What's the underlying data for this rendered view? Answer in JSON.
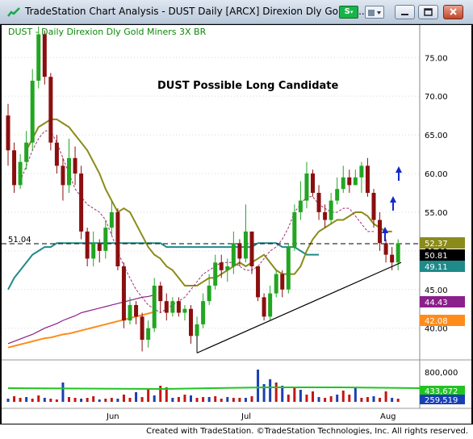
{
  "window": {
    "title": "TradeStation Chart Analysis - DUST Daily [ARCX] Direxion Dly Gold M...",
    "s_button_label": "S",
    "icons": [
      "tradestation-logo-icon",
      "dropdown-icon",
      "toolbar-icon",
      "minimize-icon",
      "restore-icon",
      "close-icon"
    ]
  },
  "chart": {
    "symbol_label": "DUST - Daily  Direxion Dly Gold Miners 3X BR",
    "annotation": "DUST Possible Long Candidate",
    "reference_line_label": "51.04",
    "price_ticks": [
      "75.00",
      "70.00",
      "65.00",
      "60.00",
      "55.00",
      "50.00",
      "45.00",
      "40.00"
    ],
    "volume_tick": "800,000",
    "x_labels": [
      "Jun",
      "Jul",
      "Aug"
    ],
    "price_badges": [
      {
        "value": "52.37",
        "color": "#8b8b1a"
      },
      {
        "value": "50.81",
        "color": "#000000"
      },
      {
        "value": "49.11",
        "color": "#1e8a8a"
      },
      {
        "value": "44.43",
        "color": "#8b1f8b"
      },
      {
        "value": "42.08",
        "color": "#ff8c1a"
      }
    ],
    "volume_badges": [
      {
        "value": "433,672",
        "color": "#22c422"
      },
      {
        "value": "259,519",
        "color": "#1a3fb5"
      }
    ]
  },
  "chart_data": {
    "type": "candlestick",
    "symbol": "DUST",
    "reference_line": 51.04,
    "ylim": [
      36,
      79
    ],
    "x_labels": [
      "Jun",
      "Jul",
      "Aug"
    ],
    "candles": [
      [
        67.5,
        63,
        69,
        61
      ],
      [
        63,
        58.5,
        64,
        57.5
      ],
      [
        58.5,
        61.5,
        62.5,
        58
      ],
      [
        61.5,
        64,
        65.5,
        60.5
      ],
      [
        64,
        72,
        73.5,
        63
      ],
      [
        72,
        78,
        79,
        71
      ],
      [
        78,
        72.5,
        78.5,
        71.5
      ],
      [
        72.5,
        64,
        73,
        63
      ],
      [
        64,
        61,
        65,
        60
      ],
      [
        61,
        58.5,
        62,
        56.5
      ],
      [
        58.5,
        62,
        64.5,
        57.5
      ],
      [
        62,
        60,
        63.5,
        58.5
      ],
      [
        60,
        52.5,
        61,
        51.5
      ],
      [
        52.5,
        49,
        53,
        48
      ],
      [
        49,
        51,
        52.5,
        48
      ],
      [
        51,
        50,
        51.5,
        48.5
      ],
      [
        50,
        53,
        54,
        49
      ],
      [
        53,
        55,
        56.5,
        52
      ],
      [
        55,
        48,
        55.5,
        47.5
      ],
      [
        48,
        41,
        48.5,
        40
      ],
      [
        41,
        43,
        44,
        40.5
      ],
      [
        43,
        41.5,
        43.5,
        40.5
      ],
      [
        41.5,
        38.5,
        42,
        37
      ],
      [
        38.5,
        40,
        41,
        37.5
      ],
      [
        40,
        45.5,
        46.5,
        39.5
      ],
      [
        45.5,
        43.5,
        46,
        42
      ],
      [
        43.5,
        42,
        44.5,
        41
      ],
      [
        42,
        43.5,
        44,
        41.5
      ],
      [
        43.5,
        42,
        44,
        41.5
      ],
      [
        42,
        42.5,
        43,
        41
      ],
      [
        42.5,
        39,
        43,
        38
      ],
      [
        39,
        40.5,
        41.5,
        38.5
      ],
      [
        40.5,
        43.5,
        44.5,
        40
      ],
      [
        43.5,
        45.5,
        47,
        43
      ],
      [
        45.5,
        48.5,
        49.5,
        45
      ],
      [
        48.5,
        47.5,
        49.5,
        46.5
      ],
      [
        47.5,
        48,
        49,
        46
      ],
      [
        48,
        51,
        52.5,
        47
      ],
      [
        51,
        49,
        51.5,
        48
      ],
      [
        49,
        52.5,
        56,
        48.5
      ],
      [
        52.5,
        48,
        52,
        47
      ],
      [
        48,
        44,
        48,
        43.5
      ],
      [
        44,
        41.5,
        44.5,
        41
      ],
      [
        41.5,
        44.5,
        45.5,
        41
      ],
      [
        44.5,
        47,
        47.5,
        44
      ],
      [
        47,
        45,
        47.5,
        44
      ],
      [
        45,
        50.5,
        51,
        44.5
      ],
      [
        50.5,
        55,
        56,
        50
      ],
      [
        55,
        56.5,
        59,
        54
      ],
      [
        56.5,
        60,
        61.5,
        55.5
      ],
      [
        60,
        57.5,
        60.5,
        57
      ],
      [
        57.5,
        55,
        58.5,
        54
      ],
      [
        55,
        54,
        56,
        53
      ],
      [
        54,
        56.5,
        57.5,
        53.5
      ],
      [
        56.5,
        58,
        59.5,
        56
      ],
      [
        58,
        59.5,
        61,
        57.5
      ],
      [
        59.5,
        58.5,
        60.5,
        57.5
      ],
      [
        58.5,
        59.5,
        60.5,
        58.5
      ],
      [
        59.5,
        61,
        61.5,
        57.5
      ],
      [
        61,
        57.5,
        62,
        57
      ],
      [
        57.5,
        54,
        58,
        53
      ],
      [
        54,
        51,
        55,
        50
      ],
      [
        51,
        49.5,
        51.5,
        48.5
      ],
      [
        49.5,
        48.5,
        50.5,
        47.5
      ],
      [
        48.5,
        51,
        51.5,
        47.5
      ]
    ],
    "ma_olive": [
      63,
      64.5,
      66,
      66.5,
      67,
      67,
      66.5,
      66,
      65,
      64,
      63,
      61.5,
      60,
      58,
      56.5,
      55,
      55.5,
      55,
      53.5,
      52,
      50.5,
      49.5,
      49,
      48,
      47.5,
      46.5,
      45.5,
      45.5,
      45.5,
      46,
      46.5,
      46.5,
      47,
      47.5,
      48,
      48.5,
      48,
      48.5,
      49,
      49.5,
      48.5,
      47.5,
      47,
      47,
      47,
      48,
      50,
      51.5,
      52.5,
      53,
      53.5,
      54,
      54,
      54.5,
      55,
      55,
      54.5,
      53.5,
      53,
      52.5,
      52.5
    ],
    "ma_magenta": [
      59,
      61,
      63,
      64.5,
      65.5,
      65.5,
      64,
      62,
      60,
      58,
      57,
      56,
      55.5,
      55,
      54,
      52,
      50,
      48,
      46.5,
      45,
      44,
      43,
      42.5,
      42,
      42.5,
      43,
      43.5,
      44,
      45,
      46,
      47,
      47.5,
      48,
      48.5,
      48.5,
      48.5,
      48,
      47.5,
      47.5,
      48,
      49,
      50,
      50.5,
      51.5,
      53,
      55,
      56,
      57,
      57,
      56,
      55.5,
      55,
      55,
      55.5,
      55.5,
      54.5,
      53.5,
      52.5,
      52.5
    ],
    "ma_teal": [
      45,
      46.5,
      47.5,
      48.5,
      49.5,
      50,
      50.5,
      50.5,
      51,
      51,
      51,
      51,
      51,
      51,
      51,
      51,
      51,
      51,
      51,
      51,
      51,
      51,
      51,
      51,
      51,
      51,
      50.5,
      50.5,
      50.5,
      50.5,
      50.5,
      50.5,
      50.5,
      50.5,
      50.5,
      50.5,
      50.5,
      50.5,
      50.5,
      50.5,
      50.5,
      51,
      51,
      51,
      51,
      50.5,
      50.5,
      50.5,
      50,
      49.5,
      49.5,
      49.5
    ],
    "ma_purple": [
      38,
      38.3,
      38.6,
      38.9,
      39.2,
      39.6,
      40,
      40.3,
      40.6,
      41,
      41.3,
      41.6,
      42,
      42.2,
      42.4,
      42.6,
      42.8,
      43,
      43.2,
      43.4,
      43.6,
      43.8,
      44,
      44.1,
      44.3
    ],
    "ma_orange": [
      37.5,
      37.7,
      37.9,
      38.1,
      38.3,
      38.5,
      38.7,
      38.8,
      39,
      39.2,
      39.3,
      39.5,
      39.7,
      39.9,
      40.1,
      40.3,
      40.5,
      40.7,
      40.9,
      41.1,
      41.3,
      41.5,
      41.7,
      41.9,
      42.1
    ],
    "trendline": [
      [
        49,
        36.8
      ],
      [
        61.5,
        48.5
      ]
    ],
    "arrows_count": 3,
    "volume_labels": [
      "433,672",
      "259,519"
    ]
  }
}
